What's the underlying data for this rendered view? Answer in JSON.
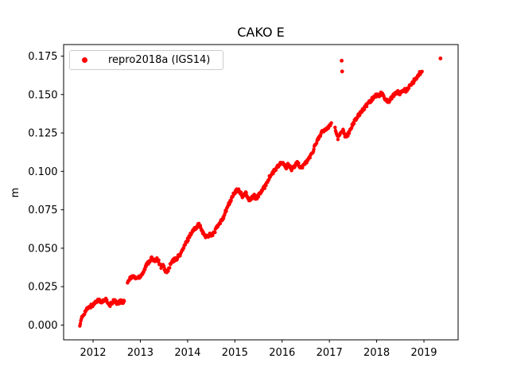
{
  "chart_data": {
    "type": "scatter",
    "title": "CAKO E",
    "xlabel": "",
    "ylabel": "m",
    "xlim": [
      2011.377,
      2019.723
    ],
    "ylim": [
      -0.0096,
      0.1825
    ],
    "xticks": [
      2012,
      2013,
      2014,
      2015,
      2016,
      2017,
      2018,
      2019
    ],
    "xtick_labels": [
      "2012",
      "2013",
      "2014",
      "2015",
      "2016",
      "2017",
      "2018",
      "2019"
    ],
    "yticks": [
      0.0,
      0.025,
      0.05,
      0.075,
      0.1,
      0.125,
      0.15,
      0.175
    ],
    "ytick_labels": [
      "0.000",
      "0.025",
      "0.050",
      "0.075",
      "0.100",
      "0.125",
      "0.150",
      "0.175"
    ],
    "grid": false,
    "marker_color": "#ff0000",
    "legend": {
      "position": "upper left",
      "entries": [
        {
          "label": "repro2018a (IGS14)",
          "marker": "dot-icon",
          "color": "#ff0000"
        }
      ]
    },
    "series": [
      {
        "name": "repro2018a (IGS14)",
        "color": "#ff0000",
        "segments": [
          [
            [
              2011.72,
              0.0005
            ],
            [
              2011.74,
              0.002
            ],
            [
              2011.76,
              0.0045
            ],
            [
              2011.79,
              0.0065
            ],
            [
              2011.82,
              0.008
            ],
            [
              2011.85,
              0.0095
            ],
            [
              2011.88,
              0.0105
            ],
            [
              2011.92,
              0.0115
            ],
            [
              2011.96,
              0.0125
            ],
            [
              2012.0,
              0.013
            ],
            [
              2012.04,
              0.0145
            ],
            [
              2012.08,
              0.016
            ],
            [
              2012.12,
              0.0165
            ],
            [
              2012.15,
              0.015
            ],
            [
              2012.18,
              0.0145
            ],
            [
              2012.22,
              0.016
            ],
            [
              2012.26,
              0.017
            ],
            [
              2012.29,
              0.0155
            ],
            [
              2012.32,
              0.0135
            ],
            [
              2012.35,
              0.0125
            ],
            [
              2012.39,
              0.014
            ],
            [
              2012.43,
              0.016
            ],
            [
              2012.47,
              0.0155
            ],
            [
              2012.5,
              0.0135
            ],
            [
              2012.54,
              0.0145
            ],
            [
              2012.58,
              0.0155
            ],
            [
              2012.62,
              0.0145
            ],
            [
              2012.66,
              0.0155
            ]
          ],
          [
            [
              2012.73,
              0.0285
            ],
            [
              2012.78,
              0.0305
            ],
            [
              2012.83,
              0.0315
            ],
            [
              2012.88,
              0.031
            ],
            [
              2012.93,
              0.0305
            ],
            [
              2012.98,
              0.0315
            ],
            [
              2013.03,
              0.033
            ],
            [
              2013.08,
              0.0355
            ],
            [
              2013.12,
              0.0385
            ],
            [
              2013.16,
              0.0405
            ],
            [
              2013.2,
              0.042
            ],
            [
              2013.24,
              0.0435
            ],
            [
              2013.28,
              0.0415
            ],
            [
              2013.32,
              0.0425
            ],
            [
              2013.36,
              0.0435
            ],
            [
              2013.4,
              0.0405
            ],
            [
              2013.44,
              0.038
            ],
            [
              2013.48,
              0.0385
            ],
            [
              2013.52,
              0.036
            ],
            [
              2013.56,
              0.034
            ],
            [
              2013.6,
              0.0365
            ],
            [
              2013.64,
              0.0395
            ],
            [
              2013.68,
              0.0415
            ],
            [
              2013.72,
              0.0425
            ],
            [
              2013.76,
              0.043
            ],
            [
              2013.8,
              0.0445
            ],
            [
              2013.84,
              0.046
            ],
            [
              2013.88,
              0.048
            ],
            [
              2013.92,
              0.0505
            ],
            [
              2013.96,
              0.053
            ],
            [
              2014.0,
              0.0555
            ],
            [
              2014.04,
              0.058
            ],
            [
              2014.08,
              0.06
            ],
            [
              2014.12,
              0.0615
            ],
            [
              2014.16,
              0.063
            ],
            [
              2014.2,
              0.0645
            ],
            [
              2014.24,
              0.0655
            ],
            [
              2014.28,
              0.063
            ],
            [
              2014.32,
              0.06
            ],
            [
              2014.36,
              0.0585
            ],
            [
              2014.4,
              0.0575
            ],
            [
              2014.44,
              0.058
            ],
            [
              2014.48,
              0.0595
            ],
            [
              2014.52,
              0.0585
            ],
            [
              2014.56,
              0.06
            ],
            [
              2014.6,
              0.0625
            ],
            [
              2014.64,
              0.0645
            ],
            [
              2014.68,
              0.066
            ],
            [
              2014.72,
              0.068
            ],
            [
              2014.76,
              0.0705
            ],
            [
              2014.8,
              0.0735
            ],
            [
              2014.84,
              0.0765
            ],
            [
              2014.88,
              0.079
            ],
            [
              2014.92,
              0.0815
            ],
            [
              2014.96,
              0.0845
            ],
            [
              2015.0,
              0.086
            ],
            [
              2015.04,
              0.0875
            ],
            [
              2015.08,
              0.088
            ],
            [
              2015.12,
              0.086
            ],
            [
              2015.16,
              0.0835
            ],
            [
              2015.2,
              0.0845
            ],
            [
              2015.24,
              0.086
            ],
            [
              2015.28,
              0.0825
            ],
            [
              2015.32,
              0.0815
            ],
            [
              2015.36,
              0.083
            ],
            [
              2015.4,
              0.0845
            ],
            [
              2015.44,
              0.0825
            ],
            [
              2015.48,
              0.0835
            ],
            [
              2015.52,
              0.085
            ],
            [
              2015.56,
              0.087
            ],
            [
              2015.6,
              0.0885
            ],
            [
              2015.64,
              0.0905
            ],
            [
              2015.68,
              0.093
            ],
            [
              2015.72,
              0.0955
            ],
            [
              2015.76,
              0.0975
            ],
            [
              2015.8,
              0.099
            ],
            [
              2015.84,
              0.1005
            ],
            [
              2015.88,
              0.102
            ],
            [
              2015.92,
              0.1035
            ],
            [
              2015.96,
              0.105
            ],
            [
              2016.0,
              0.1055
            ],
            [
              2016.04,
              0.104
            ],
            [
              2016.08,
              0.1025
            ],
            [
              2016.12,
              0.104
            ],
            [
              2016.16,
              0.1035
            ],
            [
              2016.2,
              0.1015
            ],
            [
              2016.24,
              0.1025
            ],
            [
              2016.28,
              0.104
            ],
            [
              2016.32,
              0.1055
            ],
            [
              2016.36,
              0.104
            ],
            [
              2016.4,
              0.1025
            ],
            [
              2016.44,
              0.1035
            ],
            [
              2016.48,
              0.105
            ],
            [
              2016.52,
              0.1065
            ],
            [
              2016.56,
              0.108
            ],
            [
              2016.6,
              0.11
            ],
            [
              2016.64,
              0.1125
            ],
            [
              2016.68,
              0.1155
            ],
            [
              2016.72,
              0.1185
            ],
            [
              2016.76,
              0.121
            ],
            [
              2016.8,
              0.1235
            ],
            [
              2016.84,
              0.1255
            ],
            [
              2016.88,
              0.126
            ],
            [
              2016.92,
              0.1275
            ],
            [
              2016.96,
              0.1285
            ],
            [
              2017.0,
              0.13
            ],
            [
              2017.04,
              0.1315
            ]
          ],
          [
            [
              2017.12,
              0.1285
            ],
            [
              2017.15,
              0.1245
            ],
            [
              2017.18,
              0.1215
            ],
            [
              2017.21,
              0.1235
            ],
            [
              2017.25,
              0.1255
            ],
            [
              2017.29,
              0.127
            ],
            [
              2017.33,
              0.1235
            ],
            [
              2017.37,
              0.1225
            ],
            [
              2017.41,
              0.125
            ],
            [
              2017.45,
              0.128
            ],
            [
              2017.49,
              0.1305
            ],
            [
              2017.53,
              0.1325
            ],
            [
              2017.57,
              0.1345
            ],
            [
              2017.61,
              0.1365
            ],
            [
              2017.65,
              0.138
            ],
            [
              2017.69,
              0.1395
            ],
            [
              2017.73,
              0.141
            ],
            [
              2017.77,
              0.1425
            ],
            [
              2017.81,
              0.144
            ],
            [
              2017.85,
              0.1455
            ],
            [
              2017.89,
              0.1465
            ],
            [
              2017.93,
              0.148
            ],
            [
              2017.97,
              0.149
            ],
            [
              2018.01,
              0.15
            ],
            [
              2018.05,
              0.1495
            ],
            [
              2018.09,
              0.1505
            ],
            [
              2018.13,
              0.15
            ],
            [
              2018.17,
              0.148
            ],
            [
              2018.21,
              0.146
            ],
            [
              2018.25,
              0.1455
            ],
            [
              2018.29,
              0.147
            ],
            [
              2018.33,
              0.1485
            ],
            [
              2018.37,
              0.15
            ],
            [
              2018.41,
              0.1505
            ],
            [
              2018.45,
              0.1515
            ],
            [
              2018.49,
              0.1505
            ],
            [
              2018.53,
              0.152
            ],
            [
              2018.57,
              0.153
            ],
            [
              2018.61,
              0.1525
            ],
            [
              2018.65,
              0.1535
            ],
            [
              2018.69,
              0.155
            ],
            [
              2018.73,
              0.1565
            ],
            [
              2018.77,
              0.158
            ],
            [
              2018.81,
              0.16
            ],
            [
              2018.85,
              0.1615
            ],
            [
              2018.89,
              0.163
            ],
            [
              2018.93,
              0.1645
            ],
            [
              2018.96,
              0.165
            ]
          ]
        ],
        "outliers": [
          [
            2017.26,
            0.172
          ],
          [
            2017.27,
            0.165
          ],
          [
            2019.35,
            0.1735
          ]
        ]
      }
    ]
  }
}
